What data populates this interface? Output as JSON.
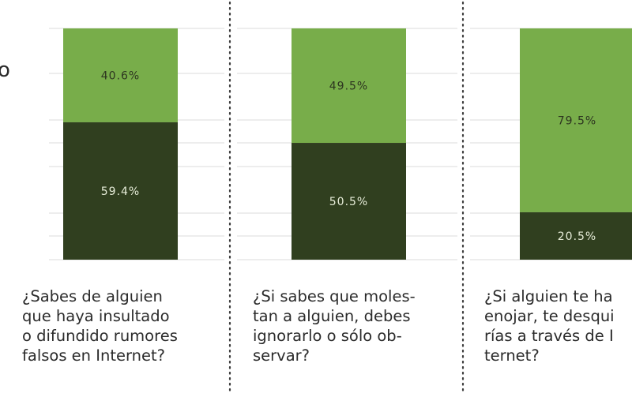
{
  "cropped_edge_text": "o",
  "colors": {
    "yes": "#78ad4a",
    "no": "#303f1f",
    "label_on_yes": "#2d3520",
    "label_on_no": "#e6ecd8"
  },
  "chart_data": {
    "type": "bar",
    "stacked": true,
    "percent": true,
    "ylim": [
      0,
      100
    ],
    "grid": true,
    "categories": [
      "¿Sabes de alguien\nque haya insultado\no difundido rumores\nfalsos en Internet?",
      "¿Si sabes que moles-\ntan a alguien, debes\nignorarlo o sólo ob-\nservar?",
      "¿Si alguien te ha\nenojar, te desqui\nrías a través de I\nternet?"
    ],
    "series": [
      {
        "name": "bottom (dark)",
        "values": [
          59.4,
          50.5,
          20.5
        ],
        "labels": [
          "59.4%",
          "50.5%",
          "20.5%"
        ]
      },
      {
        "name": "top (light)",
        "values": [
          40.6,
          49.5,
          79.5
        ],
        "labels": [
          "40.6%",
          "49.5%",
          "79.5%"
        ]
      }
    ]
  }
}
